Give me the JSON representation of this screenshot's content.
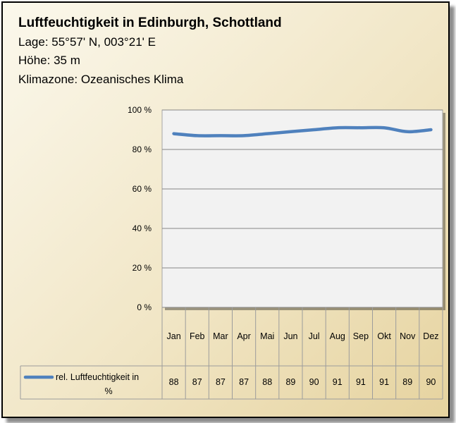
{
  "header": {
    "title": "Luftfeuchtigkeit in Edinburgh, Schottland",
    "location": "Lage: 55°57' N, 003°21' E",
    "altitude": "Höhe: 35 m",
    "climate_zone": "Klimazone: Ozeanisches Klima"
  },
  "colors": {
    "line": "#4f81bd",
    "plot_background": "#f2f2f2",
    "gridline": "#868686"
  },
  "chart_data": {
    "type": "line",
    "title": "Luftfeuchtigkeit in Edinburgh, Schottland",
    "xlabel": "",
    "ylabel": "",
    "categories": [
      "Jan",
      "Feb",
      "Mar",
      "Apr",
      "Mai",
      "Jun",
      "Jul",
      "Aug",
      "Sep",
      "Okt",
      "Nov",
      "Dez"
    ],
    "series": [
      {
        "name": "rel. Luftfeuchtigkeit in %",
        "values": [
          88,
          87,
          87,
          87,
          88,
          89,
          90,
          91,
          91,
          91,
          89,
          90
        ]
      }
    ],
    "ylim": [
      0,
      100
    ],
    "yticks": [
      0,
      20,
      40,
      60,
      80,
      100
    ],
    "ytick_labels": [
      "0 %",
      "20 %",
      "40 %",
      "60 %",
      "80 %",
      "100 %"
    ],
    "grid": true,
    "legend": "bottom-left, inside data table",
    "data_table": true
  }
}
